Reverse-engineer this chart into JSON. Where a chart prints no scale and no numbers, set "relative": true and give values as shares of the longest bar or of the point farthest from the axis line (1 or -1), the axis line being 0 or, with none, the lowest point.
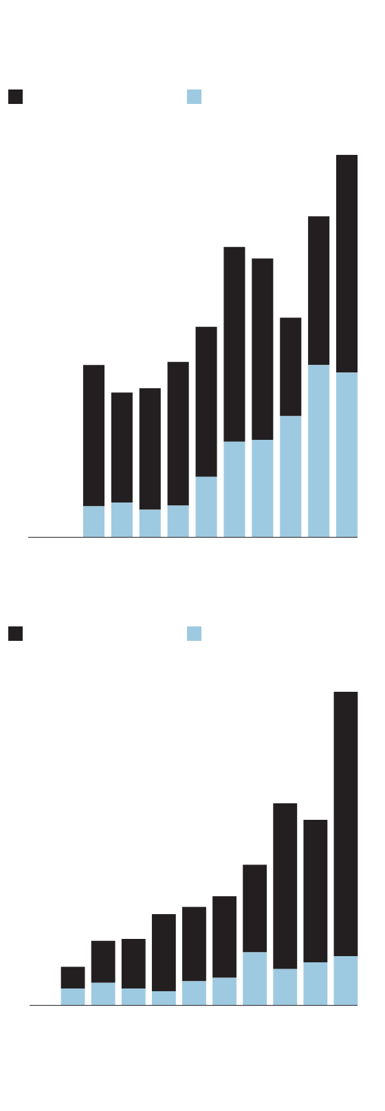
{
  "chart_data": [
    {
      "type": "bar",
      "stacked": true,
      "relative": true,
      "categories": [
        null,
        null,
        null,
        null,
        null,
        null,
        null,
        null,
        null,
        null
      ],
      "series": [
        {
          "color": "#9ecae1",
          "values": [
            0.08,
            0.09,
            0.071,
            0.082,
            0.157,
            0.249,
            0.254,
            0.316,
            0.45,
            0.43
          ]
        },
        {
          "color": "#231f20",
          "values": [
            0.37,
            0.288,
            0.318,
            0.376,
            0.393,
            0.51,
            0.475,
            0.258,
            0.389,
            0.57
          ]
        }
      ]
    },
    {
      "type": "bar",
      "stacked": true,
      "relative": true,
      "categories": [
        null,
        null,
        null,
        null,
        null,
        null,
        null,
        null,
        null,
        null
      ],
      "series": [
        {
          "color": "#9ecae1",
          "values": [
            0.053,
            0.071,
            0.053,
            0.044,
            0.076,
            0.087,
            0.168,
            0.115,
            0.136,
            0.156
          ]
        },
        {
          "color": "#231f20",
          "values": [
            0.069,
            0.134,
            0.158,
            0.246,
            0.237,
            0.26,
            0.28,
            0.529,
            0.455,
            0.844
          ]
        }
      ]
    }
  ]
}
